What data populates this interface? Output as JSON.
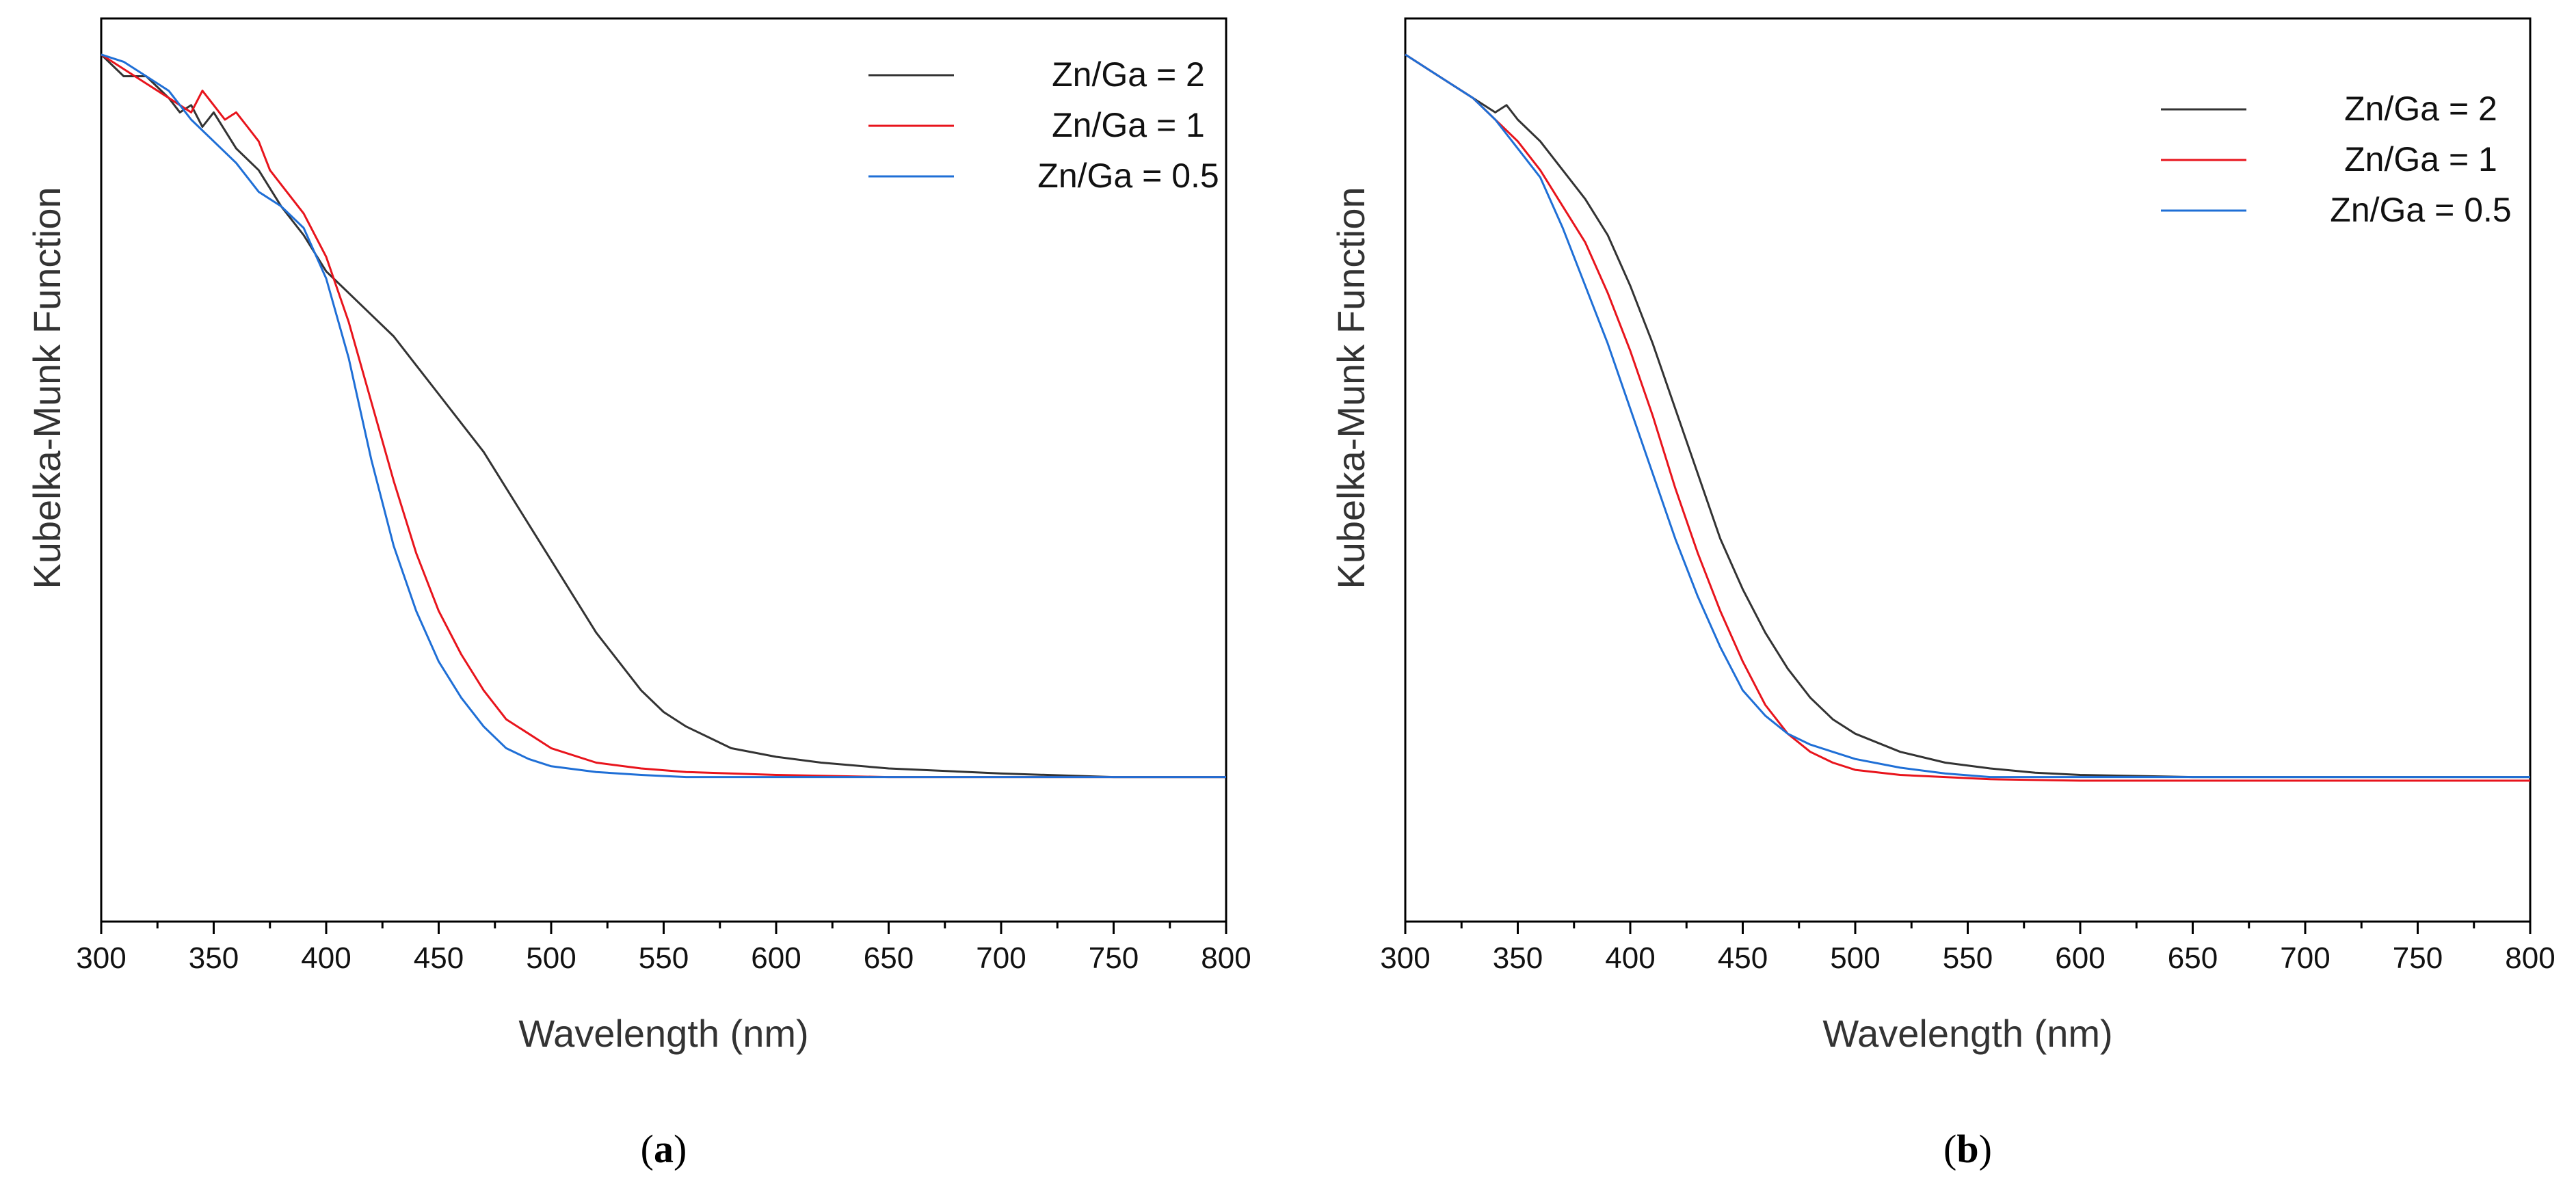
{
  "chart_data": [
    {
      "type": "line",
      "panel": "(a)",
      "panel_letter": "a",
      "xlabel": "Wavelength (nm)",
      "ylabel": "Kubelka-Munk Function",
      "xlim": [
        300,
        800
      ],
      "ylim": [
        0,
        1.25
      ],
      "x_ticks": [
        "300",
        "350",
        "400",
        "450",
        "500",
        "550",
        "600",
        "650",
        "700",
        "750",
        "800"
      ],
      "y_ticks": [],
      "legend_position": "top-right",
      "series": [
        {
          "name": "Zn/Ga = 2",
          "color": "#333333",
          "x": [
            300,
            310,
            320,
            330,
            335,
            340,
            345,
            350,
            360,
            370,
            380,
            390,
            400,
            410,
            420,
            430,
            440,
            450,
            460,
            470,
            480,
            490,
            500,
            510,
            520,
            530,
            540,
            550,
            560,
            570,
            580,
            600,
            620,
            650,
            700,
            750,
            800
          ],
          "y": [
            1.2,
            1.17,
            1.17,
            1.14,
            1.12,
            1.13,
            1.1,
            1.12,
            1.07,
            1.04,
            0.99,
            0.95,
            0.9,
            0.87,
            0.84,
            0.81,
            0.77,
            0.73,
            0.69,
            0.65,
            0.6,
            0.55,
            0.5,
            0.45,
            0.4,
            0.36,
            0.32,
            0.29,
            0.27,
            0.255,
            0.24,
            0.228,
            0.22,
            0.212,
            0.205,
            0.2,
            0.2
          ]
        },
        {
          "name": "Zn/Ga = 1",
          "color": "#e8141c",
          "x": [
            300,
            310,
            320,
            330,
            340,
            345,
            350,
            355,
            360,
            365,
            370,
            375,
            380,
            390,
            400,
            410,
            420,
            430,
            440,
            450,
            460,
            470,
            480,
            490,
            500,
            520,
            540,
            560,
            600,
            650,
            700,
            750,
            800
          ],
          "y": [
            1.2,
            1.18,
            1.16,
            1.14,
            1.12,
            1.15,
            1.13,
            1.11,
            1.12,
            1.1,
            1.08,
            1.04,
            1.02,
            0.98,
            0.92,
            0.83,
            0.72,
            0.61,
            0.51,
            0.43,
            0.37,
            0.32,
            0.28,
            0.26,
            0.24,
            0.22,
            0.212,
            0.207,
            0.203,
            0.2,
            0.2,
            0.2,
            0.2
          ]
        },
        {
          "name": "Zn/Ga = 0.5",
          "color": "#1f6fd6",
          "x": [
            300,
            310,
            320,
            330,
            340,
            350,
            360,
            370,
            380,
            390,
            400,
            410,
            420,
            430,
            440,
            450,
            460,
            470,
            480,
            490,
            500,
            520,
            540,
            560,
            600,
            650,
            700,
            750,
            800
          ],
          "y": [
            1.2,
            1.19,
            1.17,
            1.15,
            1.11,
            1.08,
            1.05,
            1.01,
            0.99,
            0.96,
            0.89,
            0.78,
            0.64,
            0.52,
            0.43,
            0.36,
            0.31,
            0.27,
            0.24,
            0.225,
            0.215,
            0.207,
            0.203,
            0.2,
            0.2,
            0.2,
            0.2,
            0.2,
            0.2
          ]
        }
      ]
    },
    {
      "type": "line",
      "panel": "(b)",
      "panel_letter": "b",
      "xlabel": "Wavelength (nm)",
      "ylabel": "Kubelka-Munk Function",
      "xlim": [
        300,
        800
      ],
      "ylim": [
        0,
        1.25
      ],
      "x_ticks": [
        "300",
        "350",
        "400",
        "450",
        "500",
        "550",
        "600",
        "650",
        "700",
        "750",
        "800"
      ],
      "y_ticks": [],
      "legend_position": "top-right",
      "series": [
        {
          "name": "Zn/Ga = 2",
          "color": "#333333",
          "x": [
            300,
            310,
            320,
            330,
            340,
            345,
            350,
            360,
            370,
            380,
            390,
            400,
            410,
            420,
            430,
            440,
            450,
            460,
            470,
            480,
            490,
            500,
            520,
            540,
            560,
            580,
            600,
            650,
            700,
            750,
            800
          ],
          "y": [
            1.2,
            1.18,
            1.16,
            1.14,
            1.12,
            1.13,
            1.11,
            1.08,
            1.04,
            1.0,
            0.95,
            0.88,
            0.8,
            0.71,
            0.62,
            0.53,
            0.46,
            0.4,
            0.35,
            0.31,
            0.28,
            0.26,
            0.235,
            0.22,
            0.212,
            0.206,
            0.203,
            0.2,
            0.2,
            0.2,
            0.2
          ]
        },
        {
          "name": "Zn/Ga = 1",
          "color": "#e8141c",
          "x": [
            300,
            310,
            320,
            330,
            340,
            350,
            360,
            370,
            380,
            390,
            400,
            410,
            420,
            430,
            440,
            450,
            460,
            470,
            480,
            490,
            500,
            520,
            540,
            560,
            600,
            650,
            700,
            750,
            800
          ],
          "y": [
            1.2,
            1.18,
            1.16,
            1.14,
            1.11,
            1.08,
            1.04,
            0.99,
            0.94,
            0.87,
            0.79,
            0.7,
            0.6,
            0.51,
            0.43,
            0.36,
            0.3,
            0.26,
            0.235,
            0.22,
            0.21,
            0.203,
            0.2,
            0.197,
            0.195,
            0.195,
            0.195,
            0.195,
            0.195
          ]
        },
        {
          "name": "Zn/Ga = 0.5",
          "color": "#1f6fd6",
          "x": [
            300,
            310,
            320,
            330,
            340,
            350,
            360,
            370,
            380,
            390,
            400,
            410,
            420,
            430,
            440,
            450,
            460,
            470,
            480,
            490,
            500,
            520,
            540,
            560,
            600,
            650,
            700,
            750,
            800
          ],
          "y": [
            1.2,
            1.18,
            1.16,
            1.14,
            1.11,
            1.07,
            1.03,
            0.96,
            0.88,
            0.8,
            0.71,
            0.62,
            0.53,
            0.45,
            0.38,
            0.32,
            0.285,
            0.26,
            0.245,
            0.235,
            0.225,
            0.213,
            0.205,
            0.2,
            0.2,
            0.2,
            0.2,
            0.2,
            0.2
          ]
        }
      ]
    }
  ]
}
